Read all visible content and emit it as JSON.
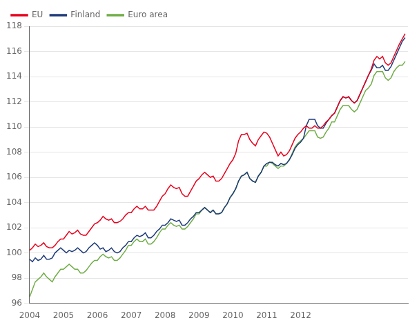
{
  "chart_data": {
    "type": "line",
    "x": [
      2004,
      2004.0833333333333,
      2004.1666666666667,
      2004.25,
      2004.3333333333333,
      2004.4166666666667,
      2004.5,
      2004.5833333333333,
      2004.6666666666667,
      2004.75,
      2004.8333333333333,
      2004.9166666666667,
      2005,
      2005.0833333333333,
      2005.1666666666667,
      2005.25,
      2005.3333333333333,
      2005.4166666666667,
      2005.5,
      2005.5833333333333,
      2005.6666666666667,
      2005.75,
      2005.8333333333333,
      2005.9166666666667,
      2006,
      2006.0833333333333,
      2006.1666666666667,
      2006.25,
      2006.3333333333333,
      2006.4166666666667,
      2006.5,
      2006.5833333333333,
      2006.6666666666667,
      2006.75,
      2006.8333333333333,
      2006.9166666666667,
      2007,
      2007.0833333333333,
      2007.1666666666667,
      2007.25,
      2007.3333333333333,
      2007.4166666666667,
      2007.5,
      2007.5833333333333,
      2007.6666666666667,
      2007.75,
      2007.8333333333333,
      2007.9166666666667,
      2008,
      2008.0833333333333,
      2008.1666666666667,
      2008.25,
      2008.3333333333333,
      2008.4166666666667,
      2008.5,
      2008.5833333333333,
      2008.6666666666667,
      2008.75,
      2008.8333333333333,
      2008.9166666666667,
      2009,
      2009.0833333333333,
      2009.1666666666667,
      2009.25,
      2009.3333333333333,
      2009.4166666666667,
      2009.5,
      2009.5833333333333,
      2009.6666666666667,
      2009.75,
      2009.8333333333333,
      2009.9166666666667,
      2010,
      2010.0833333333333,
      2010.1666666666667,
      2010.25,
      2010.3333333333333,
      2010.4166666666667,
      2010.5,
      2010.5833333333333,
      2010.6666666666667,
      2010.75,
      2010.8333333333333,
      2010.9166666666667,
      2011,
      2011.0833333333333,
      2011.1666666666667,
      2011.25,
      2011.3333333333333,
      2011.4166666666667,
      2011.5,
      2011.5833333333333,
      2011.6666666666667,
      2011.75,
      2011.8333333333333,
      2011.9166666666667,
      2012,
      2012.0833333333333,
      2012.1666666666667,
      2012.25,
      2012.3333333333333,
      2012.4166666666667,
      2012.5,
      2012.5833333333333,
      2012.6666666666667,
      2012.75,
      2012.8333333333333,
      2012.9166666666667,
      2013,
      2013.0833333333333,
      2013.1666666666667,
      2013.25,
      2013.3333333333333,
      2013.4166666666667,
      2013.5,
      2013.5833333333333,
      2013.6666666666667,
      2013.75,
      2013.8333333333333,
      2013.9166666666667,
      2014,
      2014.0833333333333,
      2014.1666666666667,
      2014.25,
      2014.3333333333333,
      2014.4166666666667,
      2014.5,
      2014.5833333333333,
      2014.6666666666667,
      2014.75,
      2014.8333333333333,
      2014.9166666666667,
      2015,
      2015.0833333333333
    ],
    "series": [
      {
        "name": "EU",
        "color": "#e8001c",
        "values": [
          100.2,
          100.4,
          100.7,
          100.5,
          100.6,
          100.8,
          100.5,
          100.4,
          100.4,
          100.6,
          100.9,
          101.1,
          101.1,
          101.4,
          101.7,
          101.5,
          101.6,
          101.8,
          101.5,
          101.4,
          101.4,
          101.7,
          102.0,
          102.3,
          102.4,
          102.6,
          102.9,
          102.7,
          102.6,
          102.7,
          102.4,
          102.4,
          102.5,
          102.7,
          103.0,
          103.2,
          103.2,
          103.5,
          103.7,
          103.5,
          103.5,
          103.7,
          103.4,
          103.4,
          103.4,
          103.7,
          104.1,
          104.5,
          104.7,
          105.1,
          105.4,
          105.2,
          105.1,
          105.2,
          104.7,
          104.5,
          104.5,
          104.9,
          105.3,
          105.7,
          105.9,
          106.2,
          106.4,
          106.2,
          106.0,
          106.1,
          105.7,
          105.7,
          105.9,
          106.3,
          106.7,
          107.1,
          107.4,
          107.9,
          108.9,
          109.4,
          109.4,
          109.5,
          109.0,
          108.7,
          108.5,
          109.0,
          109.3,
          109.6,
          109.5,
          109.2,
          108.7,
          108.2,
          107.7,
          108.0,
          107.7,
          107.8,
          108.1,
          108.6,
          109.1,
          109.4,
          109.6,
          109.9,
          110.1,
          109.9,
          109.9,
          110.1,
          109.9,
          109.9,
          110.1,
          110.4,
          110.6,
          110.9,
          111.1,
          111.6,
          112.1,
          112.4,
          112.3,
          112.4,
          112.1,
          111.9,
          112.1,
          112.6,
          113.1,
          113.6,
          114.1,
          114.6,
          115.3,
          115.6,
          115.4,
          115.6,
          115.1,
          114.9,
          115.1,
          115.6,
          116.1,
          116.6,
          117.0,
          117.4
        ]
      },
      {
        "name": "Finland",
        "color": "#1f3b7a",
        "values": [
          99.5,
          99.3,
          99.6,
          99.4,
          99.5,
          99.8,
          99.5,
          99.5,
          99.6,
          100.0,
          100.2,
          100.4,
          100.2,
          100.0,
          100.2,
          100.1,
          100.2,
          100.4,
          100.2,
          100.0,
          100.1,
          100.4,
          100.6,
          100.8,
          100.6,
          100.3,
          100.4,
          100.1,
          100.2,
          100.4,
          100.1,
          100.0,
          100.1,
          100.4,
          100.6,
          100.9,
          100.9,
          101.2,
          101.4,
          101.3,
          101.4,
          101.6,
          101.2,
          101.2,
          101.4,
          101.7,
          101.9,
          102.2,
          102.2,
          102.4,
          102.7,
          102.6,
          102.5,
          102.6,
          102.2,
          102.2,
          102.4,
          102.7,
          102.9,
          103.2,
          103.2,
          103.4,
          103.6,
          103.4,
          103.2,
          103.4,
          103.1,
          103.1,
          103.2,
          103.6,
          103.9,
          104.4,
          104.7,
          105.1,
          105.7,
          106.1,
          106.2,
          106.4,
          105.9,
          105.7,
          105.6,
          106.1,
          106.4,
          106.9,
          107.1,
          107.2,
          107.2,
          107.0,
          106.9,
          107.1,
          107.0,
          107.1,
          107.4,
          107.8,
          108.3,
          108.6,
          108.8,
          109.1,
          110.1,
          110.6,
          110.6,
          110.6,
          110.1,
          109.9,
          109.9,
          110.3,
          110.6,
          110.9,
          111.1,
          111.6,
          112.1,
          112.4,
          112.3,
          112.4,
          112.1,
          111.9,
          112.1,
          112.6,
          113.1,
          113.6,
          114.1,
          114.5,
          115.0,
          114.7,
          114.7,
          114.9,
          114.5,
          114.5,
          114.8,
          115.3,
          115.8,
          116.3,
          116.8,
          117.1
        ]
      },
      {
        "name": "Euro area",
        "color": "#70ad47",
        "values": [
          96.5,
          97.1,
          97.7,
          97.9,
          98.1,
          98.4,
          98.1,
          97.9,
          97.7,
          98.1,
          98.4,
          98.7,
          98.7,
          98.9,
          99.1,
          98.9,
          98.7,
          98.7,
          98.4,
          98.4,
          98.6,
          98.9,
          99.2,
          99.4,
          99.4,
          99.7,
          99.9,
          99.7,
          99.6,
          99.7,
          99.4,
          99.4,
          99.6,
          99.9,
          100.2,
          100.6,
          100.6,
          100.9,
          101.1,
          100.9,
          100.9,
          101.1,
          100.7,
          100.7,
          100.9,
          101.2,
          101.6,
          101.9,
          101.9,
          102.2,
          102.4,
          102.2,
          102.1,
          102.2,
          101.9,
          101.9,
          102.1,
          102.4,
          102.7,
          103.1,
          103.1,
          103.4,
          103.6,
          103.4,
          103.2,
          103.4,
          103.1,
          103.1,
          103.2,
          103.6,
          103.9,
          104.4,
          104.7,
          105.1,
          105.7,
          106.1,
          106.2,
          106.4,
          105.9,
          105.7,
          105.6,
          106.1,
          106.4,
          106.9,
          106.9,
          107.2,
          107.1,
          106.9,
          106.7,
          106.9,
          106.9,
          107.1,
          107.4,
          107.9,
          108.4,
          108.7,
          108.9,
          109.1,
          109.4,
          109.7,
          109.7,
          109.7,
          109.2,
          109.1,
          109.2,
          109.6,
          109.9,
          110.4,
          110.4,
          110.9,
          111.4,
          111.7,
          111.7,
          111.7,
          111.4,
          111.2,
          111.4,
          111.9,
          112.4,
          112.9,
          113.1,
          113.4,
          114.1,
          114.4,
          114.4,
          114.4,
          113.9,
          113.7,
          113.9,
          114.4,
          114.7,
          114.9,
          114.9,
          115.2
        ]
      }
    ],
    "xlim": [
      2004,
      2015.1666666666667
    ],
    "xticks": [
      2004,
      2005,
      2006,
      2007,
      2008,
      2009,
      2010,
      2011,
      2012
    ],
    "ylim": [
      96,
      118
    ],
    "yticks": [
      96,
      98,
      100,
      102,
      104,
      106,
      108,
      110,
      112,
      114,
      116,
      118
    ],
    "grid": "y",
    "legend": "upper left"
  }
}
